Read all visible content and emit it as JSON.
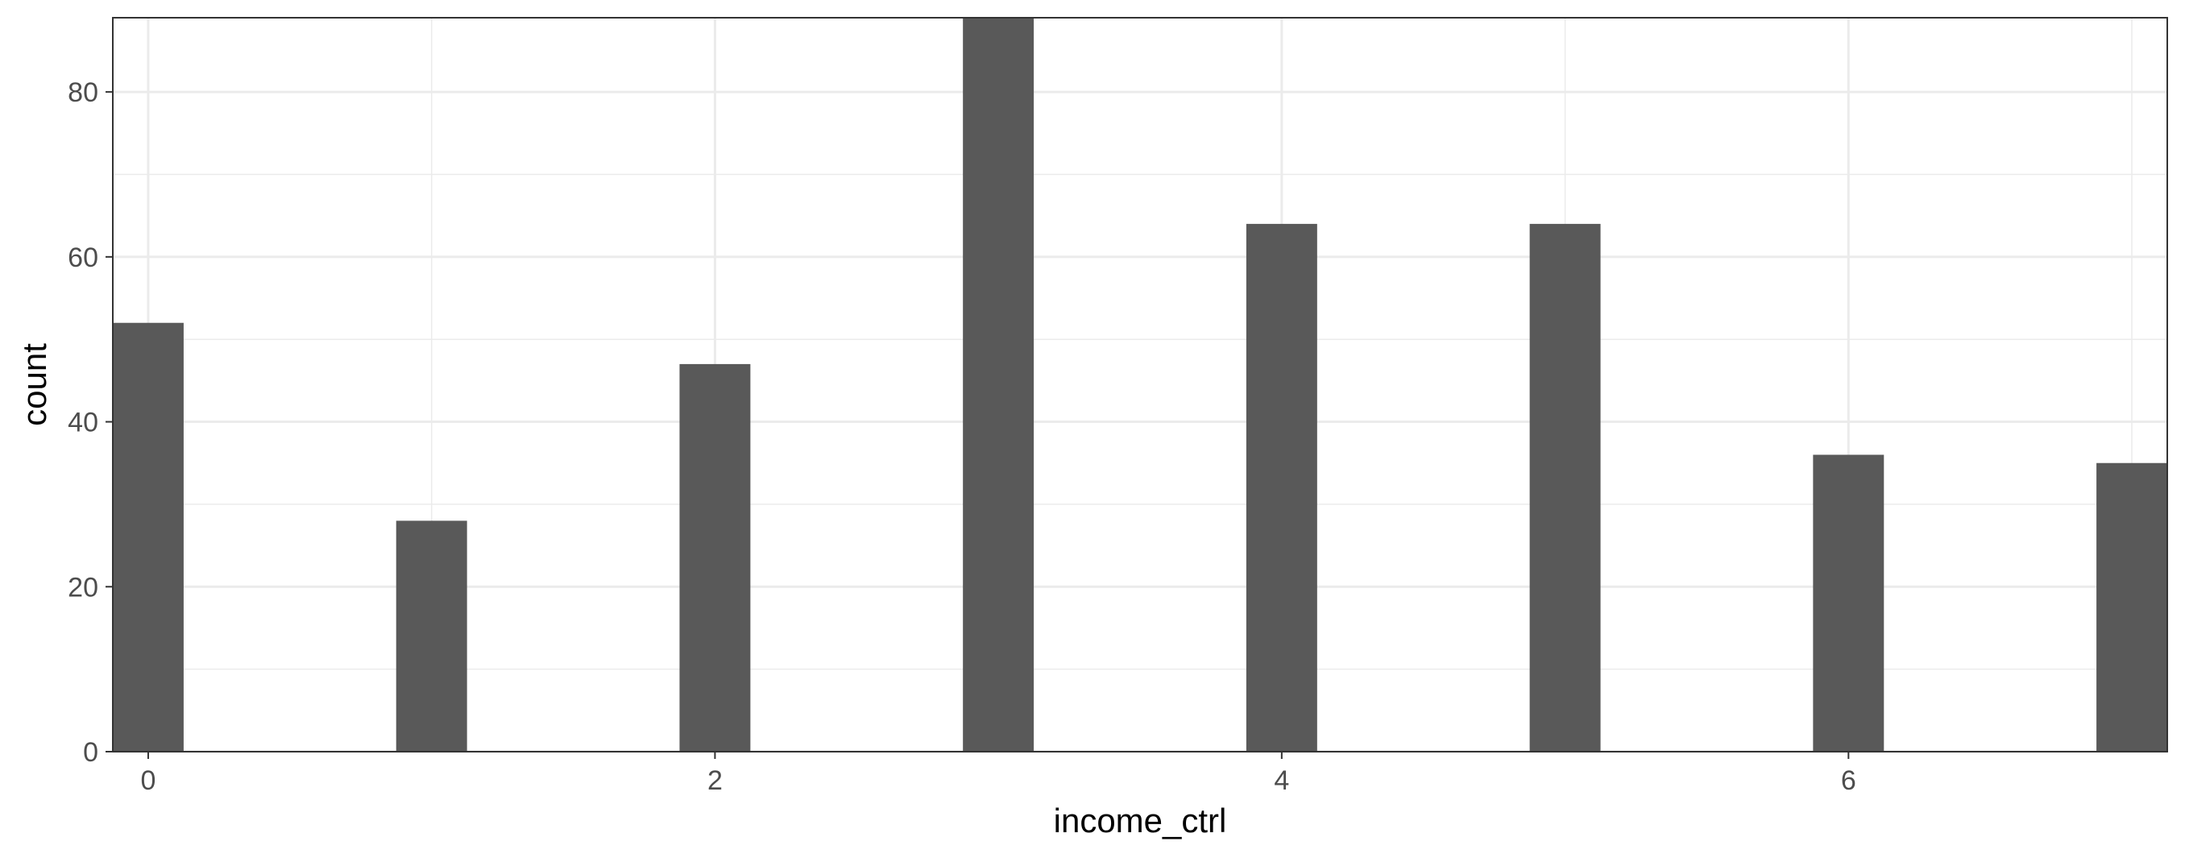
{
  "chart_data": {
    "type": "bar",
    "title": "",
    "xlabel": "income_ctrl",
    "ylabel": "count",
    "x": [
      0,
      1,
      2,
      3,
      4,
      5,
      6,
      7
    ],
    "values": [
      52,
      28,
      47,
      89,
      64,
      64,
      36,
      35
    ],
    "bar_width": 0.25,
    "xlim": [
      -0.125,
      7.125
    ],
    "ylim": [
      0,
      89
    ],
    "x_ticks": [
      0,
      2,
      4,
      6
    ],
    "y_ticks": [
      0,
      20,
      40,
      60,
      80
    ],
    "x_minor": [
      1,
      3,
      5,
      7
    ],
    "y_minor": [
      10,
      30,
      50,
      70
    ],
    "grid": true,
    "bar_color": "#595959",
    "grid_color": "#ebebeb",
    "panel_border_color": "#333333"
  }
}
